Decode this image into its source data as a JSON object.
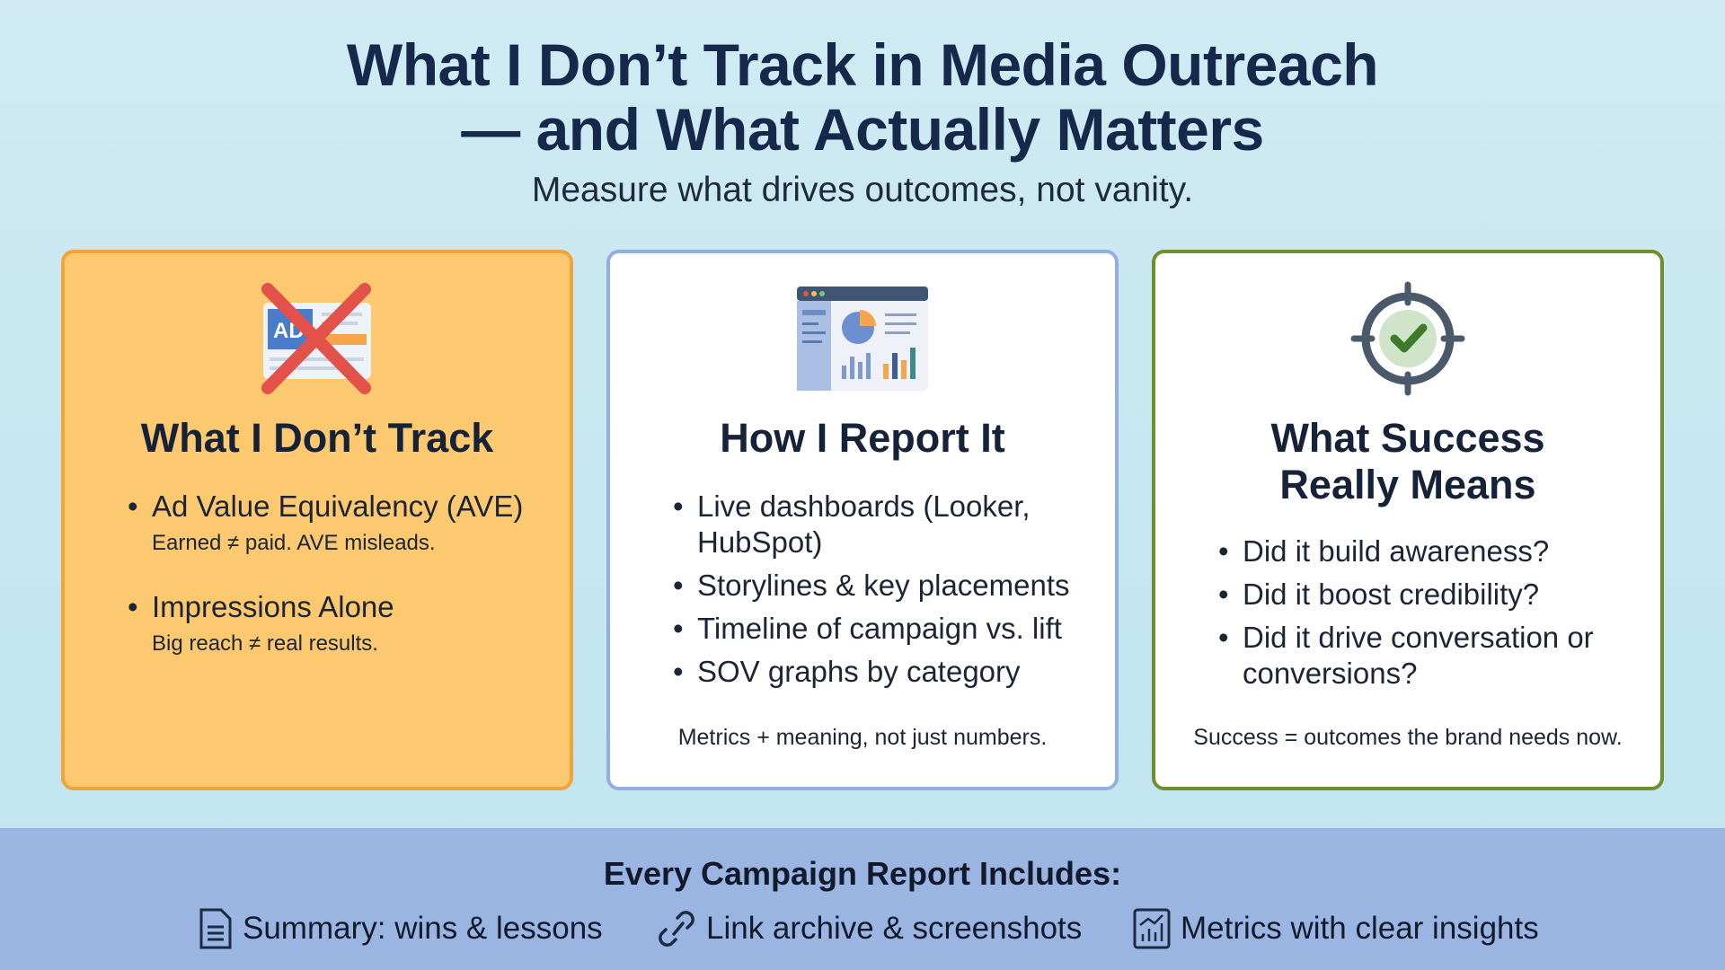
{
  "header": {
    "title_line1": "What I Don’t Track in Media Outreach",
    "title_line2": "— and What Actually Matters",
    "subtitle": "Measure what drives outcomes, not vanity."
  },
  "cards": [
    {
      "icon": "crossed-ad-icon",
      "title": "What I Don’t Track",
      "items": [
        {
          "text": "Ad Value Equivalency (AVE)",
          "sub": "Earned ≠ paid. AVE misleads."
        },
        {
          "text": "Impressions Alone",
          "sub": "Big reach ≠ real results."
        }
      ],
      "ad_label": "AD"
    },
    {
      "icon": "dashboard-icon",
      "title": "How I Report It",
      "items": [
        "Live dashboards (Looker, HubSpot)",
        "Storylines & key placements",
        "Timeline of campaign vs. lift",
        "SOV graphs by category"
      ],
      "note": "Metrics + meaning, not just numbers."
    },
    {
      "icon": "target-check-icon",
      "title_line1": "What Success",
      "title_line2": "Really Means",
      "items": [
        "Did it build awareness?",
        "Did it boost credibility?",
        "Did it drive conversation or conversions?"
      ],
      "note": "Success = outcomes the brand needs now."
    }
  ],
  "footer": {
    "title": "Every Campaign Report Includes:",
    "items": [
      {
        "icon": "document-icon",
        "label": "Summary: wins & lessons"
      },
      {
        "icon": "link-icon",
        "label": "Link archive & screenshots"
      },
      {
        "icon": "chart-icon",
        "label": "Metrics with clear insights"
      }
    ]
  },
  "colors": {
    "card1_bg": "#fcc870",
    "card1_border": "#f0a43a",
    "card2_border": "#93aee0",
    "card3_border": "#6f8f2f",
    "footer_bg": "#9bb5e3"
  }
}
